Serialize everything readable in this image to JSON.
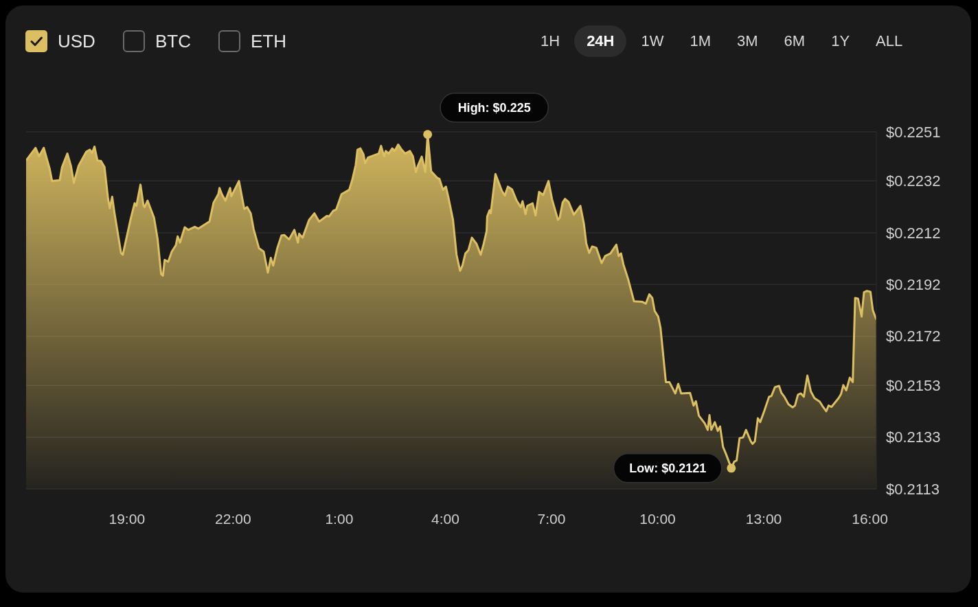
{
  "chart_data": {
    "type": "area",
    "legend": "top left",
    "grid": "y",
    "xlim": [
      "--01-01T16:09",
      "--01-02T16:11"
    ],
    "xticks": [
      {
        "value": "--01-01T19:00",
        "label": "19:00"
      },
      {
        "value": "--01-01T22:00",
        "label": "22:00"
      },
      {
        "value": "--01-02T01:00",
        "label": "1:00"
      },
      {
        "value": "--01-02T04:00",
        "label": "4:00"
      },
      {
        "value": "--01-02T07:00",
        "label": "7:00"
      },
      {
        "value": "--01-02T10:00",
        "label": "10:00"
      },
      {
        "value": "--01-02T13:00",
        "label": "13:00"
      },
      {
        "value": "--01-02T16:00",
        "label": "16:00"
      }
    ],
    "ylim": [
      0.2113,
      0.2251
    ],
    "yticks": [
      {
        "value": 0.2113,
        "label": "$0.2113"
      },
      {
        "value": 0.2133,
        "label": "$0.2133"
      },
      {
        "value": 0.2153,
        "label": "$0.2153"
      },
      {
        "value": 0.2172,
        "label": "$0.2172"
      },
      {
        "value": 0.2192,
        "label": "$0.2192"
      },
      {
        "value": 0.2212,
        "label": "$0.2212"
      },
      {
        "value": 0.2232,
        "label": "$0.2232"
      },
      {
        "value": 0.2251,
        "label": "$0.2251"
      }
    ],
    "x": [
      "--01-01T16:09",
      "--01-01T16:25",
      "--01-01T16:31",
      "--01-01T16:39",
      "--01-01T16:49",
      "--01-01T16:53",
      "--01-01T17:06",
      "--01-01T17:10",
      "--01-01T17:19",
      "--01-01T17:25",
      "--01-01T17:30",
      "--01-01T17:38",
      "--01-01T17:51",
      "--01-01T17:57",
      "--01-01T18:01",
      "--01-01T18:05",
      "--01-01T18:10",
      "--01-01T18:16",
      "--01-01T18:22",
      "--01-01T18:28",
      "--01-01T18:31",
      "--01-01T18:35",
      "--01-01T18:39",
      "--01-01T18:50",
      "--01-01T18:53",
      "--01-01T19:06",
      "--01-01T19:13",
      "--01-01T19:16",
      "--01-01T19:23",
      "--01-01T19:28",
      "--01-01T19:30",
      "--01-01T19:35",
      "--01-01T19:46",
      "--01-01T19:52",
      "--01-01T19:58",
      "--01-01T20:01",
      "--01-01T20:04",
      "--01-01T20:10",
      "--01-01T20:16",
      "--01-01T20:23",
      "--01-01T20:26",
      "--01-01T20:30",
      "--01-01T20:38",
      "--01-01T20:44",
      "--01-01T20:55",
      "--01-01T21:01",
      "--01-01T21:16",
      "--01-01T21:20",
      "--01-01T21:27",
      "--01-01T21:35",
      "--01-01T21:37",
      "--01-01T21:41",
      "--01-01T21:47",
      "--01-01T21:55",
      "--01-01T21:57",
      "--01-01T22:10",
      "--01-01T22:19",
      "--01-01T22:24",
      "--01-01T22:30",
      "--01-01T22:35",
      "--01-01T22:44",
      "--01-01T22:52",
      "--01-01T22:59",
      "--01-01T23:04",
      "--01-01T23:08",
      "--01-01T23:15",
      "--01-01T23:22",
      "--01-01T23:27",
      "--01-01T23:35",
      "--01-01T23:44",
      "--01-01T23:50",
      "--01-01T23:52",
      "--01-01T23:58",
      "--01-02T00:09",
      "--01-02T00:18",
      "--01-02T00:26",
      "--01-02T00:39",
      "--01-02T00:43",
      "--01-02T00:50",
      "--01-02T00:55",
      "--01-02T01:04",
      "--01-02T01:17",
      "--01-02T01:22",
      "--01-02T01:28",
      "--01-02T01:31",
      "--01-02T01:36",
      "--01-02T01:41",
      "--01-02T01:44",
      "--01-02T01:49",
      "--01-02T02:07",
      "--01-02T02:11",
      "--01-02T02:16",
      "--01-02T02:19",
      "--01-02T02:24",
      "--01-02T02:30",
      "--01-02T02:34",
      "--01-02T02:40",
      "--01-02T02:46",
      "--01-02T02:52",
      "--01-02T03:00",
      "--01-02T03:05",
      "--01-02T03:10",
      "--01-02T03:14",
      "--01-02T03:20",
      "--01-02T03:26",
      "--01-02T03:30",
      "--01-02T03:36",
      "--01-02T03:46",
      "--01-02T03:50",
      "--01-02T03:56",
      "--01-02T04:01",
      "--01-02T04:05",
      "--01-02T04:13",
      "--01-02T04:19",
      "--01-02T04:25",
      "--01-02T04:29",
      "--01-02T04:34",
      "--01-02T04:39",
      "--01-02T04:45",
      "--01-02T04:53",
      "--01-02T05:00",
      "--01-02T05:05",
      "--01-02T05:10",
      "--01-02T05:11",
      "--01-02T05:15",
      "--01-02T05:17",
      "--01-02T05:25",
      "--01-02T05:36",
      "--01-02T05:41",
      "--01-02T05:46",
      "--01-02T05:53",
      "--01-02T06:01",
      "--01-02T06:08",
      "--01-02T06:11",
      "--01-02T06:16",
      "--01-02T06:19",
      "--01-02T06:28",
      "--01-02T06:33",
      "--01-02T06:39",
      "--01-02T06:46",
      "--01-02T06:55",
      "--01-02T07:01",
      "--01-02T07:11",
      "--01-02T07:14",
      "--01-02T07:19",
      "--01-02T07:23",
      "--01-02T07:29",
      "--01-02T07:38",
      "--01-02T07:49",
      "--01-02T07:55",
      "--01-02T07:59",
      "--01-02T08:04",
      "--01-02T08:09",
      "--01-02T08:16",
      "--01-02T08:25",
      "--01-02T08:31",
      "--01-02T08:40",
      "--01-02T08:50",
      "--01-02T08:54",
      "--01-02T08:58",
      "--01-02T09:02",
      "--01-02T09:10",
      "--01-02T09:20",
      "--01-02T09:34",
      "--01-02T09:40",
      "--01-02T09:46",
      "--01-02T09:51",
      "--01-02T09:55",
      "--01-02T10:01",
      "--01-02T10:05",
      "--01-02T10:14",
      "--01-02T10:20",
      "--01-02T10:30",
      "--01-02T10:35",
      "--01-02T10:40",
      "--01-02T10:55",
      "--01-02T11:01",
      "--01-02T11:05",
      "--01-02T11:10",
      "--01-02T11:20",
      "--01-02T11:25",
      "--01-02T11:28",
      "--01-02T11:31",
      "--01-02T11:37",
      "--01-02T11:42",
      "--01-02T11:46",
      "--01-02T11:51",
      "--01-02T11:56",
      "--01-02T12:05",
      "--01-02T12:10",
      "--01-02T12:14",
      "--01-02T12:19",
      "--01-02T12:25",
      "--01-02T12:30",
      "--01-02T12:38",
      "--01-02T12:41",
      "--01-02T12:45",
      "--01-02T12:50",
      "--01-02T12:54",
      "--01-02T13:01",
      "--01-02T13:09",
      "--01-02T13:13",
      "--01-02T13:19",
      "--01-02T13:26",
      "--01-02T13:30",
      "--01-02T13:35",
      "--01-02T13:42",
      "--01-02T13:49",
      "--01-02T13:53",
      "--01-02T13:58",
      "--01-02T14:03",
      "--01-02T14:08",
      "--01-02T14:14",
      "--01-02T14:20",
      "--01-02T14:26",
      "--01-02T14:35",
      "--01-02T14:40",
      "--01-02T14:46",
      "--01-02T14:50",
      "--01-02T14:55",
      "--01-02T15:07",
      "--01-02T15:11",
      "--01-02T15:15",
      "--01-02T15:20",
      "--01-02T15:26",
      "--01-02T15:31",
      "--01-02T15:35",
      "--01-02T15:40",
      "--01-02T15:46",
      "--01-02T15:50",
      "--01-02T15:55",
      "--01-02T16:01",
      "--01-02T16:05",
      "--01-02T16:11"
    ],
    "series": [
      {
        "name": "USD",
        "color": "#dcbf62",
        "values": [
          0.22399,
          0.22448,
          0.22416,
          0.22448,
          0.22367,
          0.2232,
          0.22323,
          0.22374,
          0.22426,
          0.22379,
          0.22313,
          0.22379,
          0.22433,
          0.22441,
          0.22429,
          0.22453,
          0.22399,
          0.22397,
          0.22374,
          0.22251,
          0.22215,
          0.22259,
          0.22195,
          0.22042,
          0.22035,
          0.2217,
          0.22234,
          0.22224,
          0.22306,
          0.22227,
          0.22219,
          0.22244,
          0.22178,
          0.22096,
          0.21961,
          0.21954,
          0.22015,
          0.22008,
          0.22047,
          0.22072,
          0.22106,
          0.22082,
          0.22141,
          0.22131,
          0.22143,
          0.22136,
          0.22158,
          0.22163,
          0.22237,
          0.22269,
          0.22293,
          0.22269,
          0.22244,
          0.22293,
          0.22261,
          0.2232,
          0.22212,
          0.22219,
          0.22195,
          0.22133,
          0.2206,
          0.22047,
          0.21966,
          0.22023,
          0.21993,
          0.2206,
          0.22109,
          0.22111,
          0.22094,
          0.22131,
          0.22082,
          0.22116,
          0.22101,
          0.2217,
          0.22195,
          0.22163,
          0.22185,
          0.22183,
          0.22205,
          0.2221,
          0.22269,
          0.22286,
          0.22323,
          0.22382,
          0.22441,
          0.22446,
          0.22424,
          0.22389,
          0.22411,
          0.22426,
          0.22456,
          0.22416,
          0.22436,
          0.22426,
          0.22446,
          0.22436,
          0.22461,
          0.22441,
          0.22426,
          0.22436,
          0.22416,
          0.22355,
          0.22382,
          0.22414,
          0.22355,
          0.225,
          0.22357,
          0.22333,
          0.22328,
          0.22286,
          0.22298,
          0.22259,
          0.2217,
          0.22035,
          0.21973,
          0.21993,
          0.2204,
          0.22052,
          0.22101,
          0.22077,
          0.22035,
          0.22077,
          0.22126,
          0.22183,
          0.22207,
          0.22195,
          0.22347,
          0.22281,
          0.22264,
          0.22298,
          0.22288,
          0.22244,
          0.22219,
          0.22242,
          0.22192,
          0.22224,
          0.22234,
          0.22187,
          0.22278,
          0.22266,
          0.2232,
          0.22249,
          0.2217,
          0.22178,
          0.22237,
          0.22251,
          0.22239,
          0.2219,
          0.22224,
          0.22155,
          0.22079,
          0.22042,
          0.22067,
          0.22062,
          0.22003,
          0.2203,
          0.2204,
          0.22074,
          0.2203,
          0.2204,
          0.21998,
          0.21941,
          0.21855,
          0.21853,
          0.21846,
          0.21882,
          0.21868,
          0.21818,
          0.21796,
          0.21752,
          0.21543,
          0.21543,
          0.21499,
          0.21536,
          0.21499,
          0.21501,
          0.21452,
          0.21469,
          0.21413,
          0.21383,
          0.21358,
          0.21415,
          0.21358,
          0.21388,
          0.21354,
          0.21371,
          0.21292,
          0.21265,
          0.2121,
          0.21235,
          0.2124,
          0.21326,
          0.21329,
          0.21358,
          0.21314,
          0.21304,
          0.21314,
          0.21403,
          0.21388,
          0.21432,
          0.21486,
          0.21489,
          0.21523,
          0.21528,
          0.21501,
          0.21486,
          0.21457,
          0.21445,
          0.21452,
          0.21494,
          0.21499,
          0.21486,
          0.21568,
          0.21506,
          0.21481,
          0.21467,
          0.21449,
          0.2143,
          0.21452,
          0.21447,
          0.21481,
          0.21496,
          0.21531,
          0.21511,
          0.2156,
          0.21543,
          0.21868,
          0.21865,
          0.21796,
          0.2189,
          0.21895,
          0.21892,
          0.21821,
          0.21784
        ]
      }
    ],
    "annotations": [
      {
        "text": "High: $0.225",
        "x": "--01-02T03:30",
        "y": 0.225
      },
      {
        "text": "Low: $0.2121",
        "x": "--01-02T12:05",
        "y": 0.2121
      },
      "BTC",
      "ETH",
      "1H",
      "24H",
      "1W",
      "1M",
      "3M",
      "6M",
      "1Y",
      "ALL"
    ]
  }
}
